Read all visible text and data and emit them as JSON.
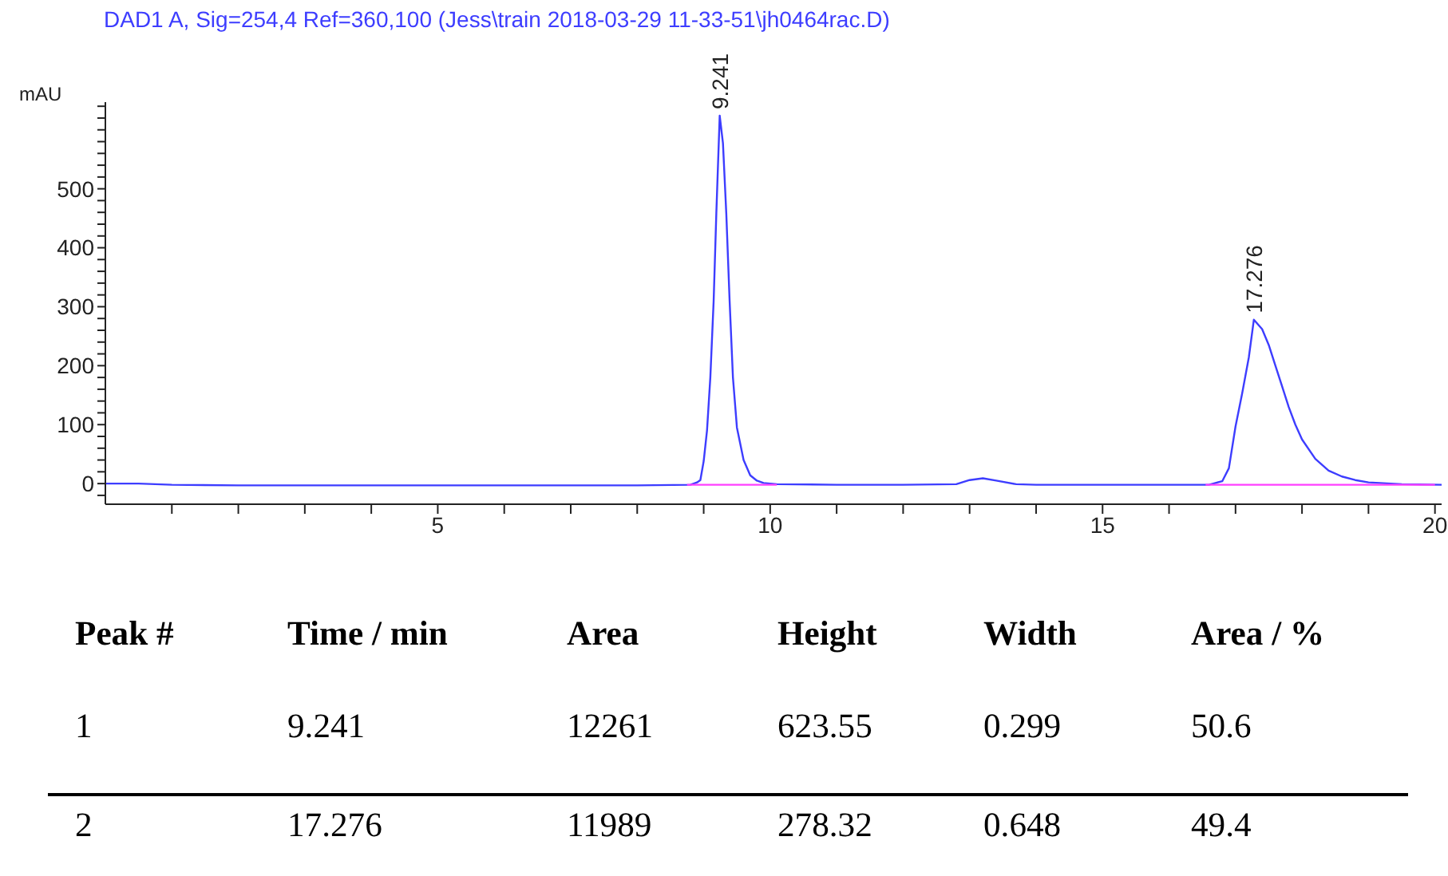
{
  "chart_data": {
    "type": "line",
    "title": "DAD1 A, Sig=254,4 Ref=360,100 (Jess\\train 2018-03-29 11-33-51\\jh0464rac.D)",
    "ylabel": "mAU",
    "xlim": [
      0,
      20.1
    ],
    "ylim": [
      -35,
      647
    ],
    "xticks": [
      {
        "value": 1,
        "label": null
      },
      {
        "value": 2,
        "label": null
      },
      {
        "value": 3,
        "label": null
      },
      {
        "value": 4,
        "label": null
      },
      5,
      {
        "value": 6,
        "label": null
      },
      {
        "value": 7,
        "label": null
      },
      {
        "value": 8,
        "label": null
      },
      {
        "value": 9,
        "label": null
      },
      10,
      {
        "value": 11,
        "label": null
      },
      {
        "value": 12,
        "label": null
      },
      {
        "value": 13,
        "label": null
      },
      {
        "value": 14,
        "label": null
      },
      15,
      {
        "value": 16,
        "label": null
      },
      {
        "value": 17,
        "label": null
      },
      {
        "value": 18,
        "label": null
      },
      {
        "value": 19,
        "label": null
      },
      20
    ],
    "yticks": [
      {
        "value": -20,
        "label": null
      },
      0,
      {
        "value": 20,
        "label": null
      },
      {
        "value": 40,
        "label": null
      },
      {
        "value": 60,
        "label": null
      },
      {
        "value": 80,
        "label": null
      },
      100,
      {
        "value": 120,
        "label": null
      },
      {
        "value": 140,
        "label": null
      },
      {
        "value": 160,
        "label": null
      },
      {
        "value": 180,
        "label": null
      },
      200,
      {
        "value": 220,
        "label": null
      },
      {
        "value": 240,
        "label": null
      },
      {
        "value": 260,
        "label": null
      },
      {
        "value": 280,
        "label": null
      },
      300,
      {
        "value": 320,
        "label": null
      },
      {
        "value": 340,
        "label": null
      },
      {
        "value": 360,
        "label": null
      },
      {
        "value": 380,
        "label": null
      },
      400,
      {
        "value": 420,
        "label": null
      },
      {
        "value": 440,
        "label": null
      },
      {
        "value": 460,
        "label": null
      },
      {
        "value": 480,
        "label": null
      },
      500,
      {
        "value": 520,
        "label": null
      },
      {
        "value": 540,
        "label": null
      },
      {
        "value": 560,
        "label": null
      },
      {
        "value": 580,
        "label": null
      },
      {
        "value": 600,
        "label": null
      },
      {
        "value": 620,
        "label": null
      },
      {
        "value": 640,
        "label": null
      }
    ],
    "marker": "none",
    "line_style": "solid",
    "series": [
      {
        "color": "#3d3dff",
        "x": [
          0,
          0.5,
          1,
          2,
          3,
          4,
          5,
          6,
          7,
          8,
          8.8,
          8.9,
          8.95,
          9.0,
          9.05,
          9.1,
          9.15,
          9.19,
          9.241,
          9.29,
          9.34,
          9.39,
          9.44,
          9.5,
          9.6,
          9.7,
          9.8,
          9.9,
          10.1,
          11,
          12,
          12.8,
          13.0,
          13.2,
          13.4,
          13.7,
          14,
          15,
          16,
          16.6,
          16.8,
          16.9,
          17.0,
          17.1,
          17.2,
          17.276,
          17.4,
          17.5,
          17.6,
          17.7,
          17.8,
          17.9,
          18.0,
          18.2,
          18.4,
          18.6,
          18.8,
          19.0,
          19.5,
          20.1
        ],
        "values": [
          0,
          0,
          -2,
          -3,
          -3,
          -3,
          -3,
          -3,
          -3,
          -3,
          -2,
          2,
          6,
          38,
          90,
          180,
          310,
          458,
          624,
          577,
          458,
          310,
          180,
          95,
          40,
          14,
          5,
          1,
          -1,
          -2,
          -2,
          -1,
          6,
          9,
          5,
          -1,
          -2,
          -2,
          -2,
          -2,
          4,
          26,
          97,
          153,
          214,
          278,
          262,
          235,
          200,
          165,
          130,
          100,
          75,
          42,
          22,
          12,
          6,
          2,
          -1,
          -2
        ]
      },
      {
        "color": "#ff40ff",
        "x": [
          8.75,
          10.1
        ],
        "values": [
          -2,
          -2
        ]
      },
      {
        "color": "#ff40ff",
        "x": [
          16.55,
          20.0
        ],
        "values": [
          -2,
          -2
        ]
      }
    ],
    "annotations": [
      {
        "text": "9.241",
        "x": 9.241,
        "y": 624
      },
      {
        "text": "17.276",
        "x": 17.276,
        "y": 278
      },
      "Peak #",
      "Time / min",
      "Area",
      "Height",
      "Width",
      "Area / %",
      "1",
      "9.241",
      "12261",
      "623.55",
      "0.299",
      "50.6",
      "2",
      "17.276",
      "11989",
      "278.32",
      "0.648",
      "49.4"
    ]
  }
}
